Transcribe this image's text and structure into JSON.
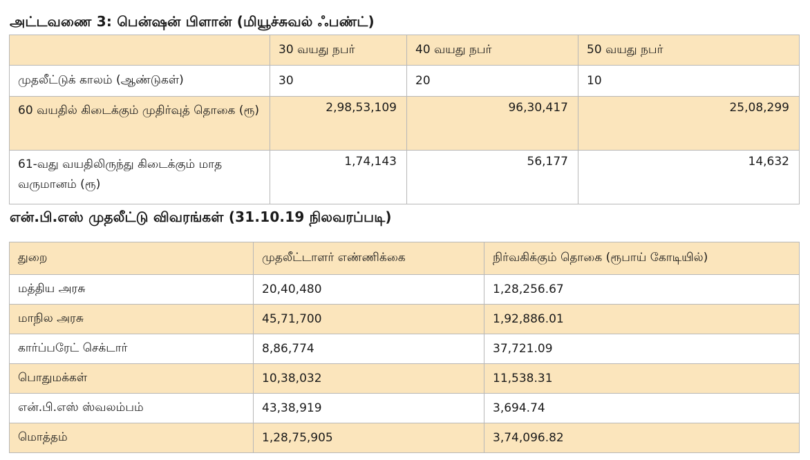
{
  "table1": {
    "title": "அட்டவணை 3: பென்ஷன் பிளான் (மியூச்சுவல் ஃபண்ட்)",
    "headers": [
      "",
      "30 வயது நபர்",
      "40 வயது நபர்",
      "50 வயது நபர்"
    ],
    "rows": [
      {
        "label": "முதலீட்டுக் காலம் (ஆண்டுகள்)",
        "values": [
          "30",
          "20",
          "10"
        ]
      },
      {
        "label": "60 வயதில் கிடைக்கும் முதிர்வுத் தொகை (ரூ)",
        "values": [
          "2,98,53,109",
          "96,30,417",
          "25,08,299"
        ]
      },
      {
        "label": "61-வது வயதிலிருந்து கிடைக்கும் மாத வருமானம் (ரூ)",
        "values": [
          "1,74,143",
          "56,177",
          "14,632"
        ]
      }
    ]
  },
  "table2": {
    "title": "என்.பி.எஸ் முதலீட்டு விவரங்கள் (31.10.19 நிலவரப்படி)",
    "headers": [
      "துறை",
      "முதலீட்டாளர் எண்ணிக்கை",
      "நிர்வகிக்கும் தொகை (ரூபாய் கோடியில்)"
    ],
    "rows": [
      {
        "sector": "மத்திய அரசு",
        "investors": "20,40,480",
        "amount": "1,28,256.67"
      },
      {
        "sector": "மாநில அரசு",
        "investors": "45,71,700",
        "amount": "1,92,886.01"
      },
      {
        "sector": "கார்ப்பரேட் செக்டார்",
        "investors": "8,86,774",
        "amount": "37,721.09"
      },
      {
        "sector": "பொதுமக்கள்",
        "investors": "10,38,032",
        "amount": "11,538.31"
      },
      {
        "sector": "என்.பி.எஸ் ஸ்வலம்பம்",
        "investors": "43,38,919",
        "amount": "3,694.74"
      },
      {
        "sector": "மொத்தம்",
        "investors": "1,28,75,905",
        "amount": "3,74,096.82"
      }
    ]
  }
}
